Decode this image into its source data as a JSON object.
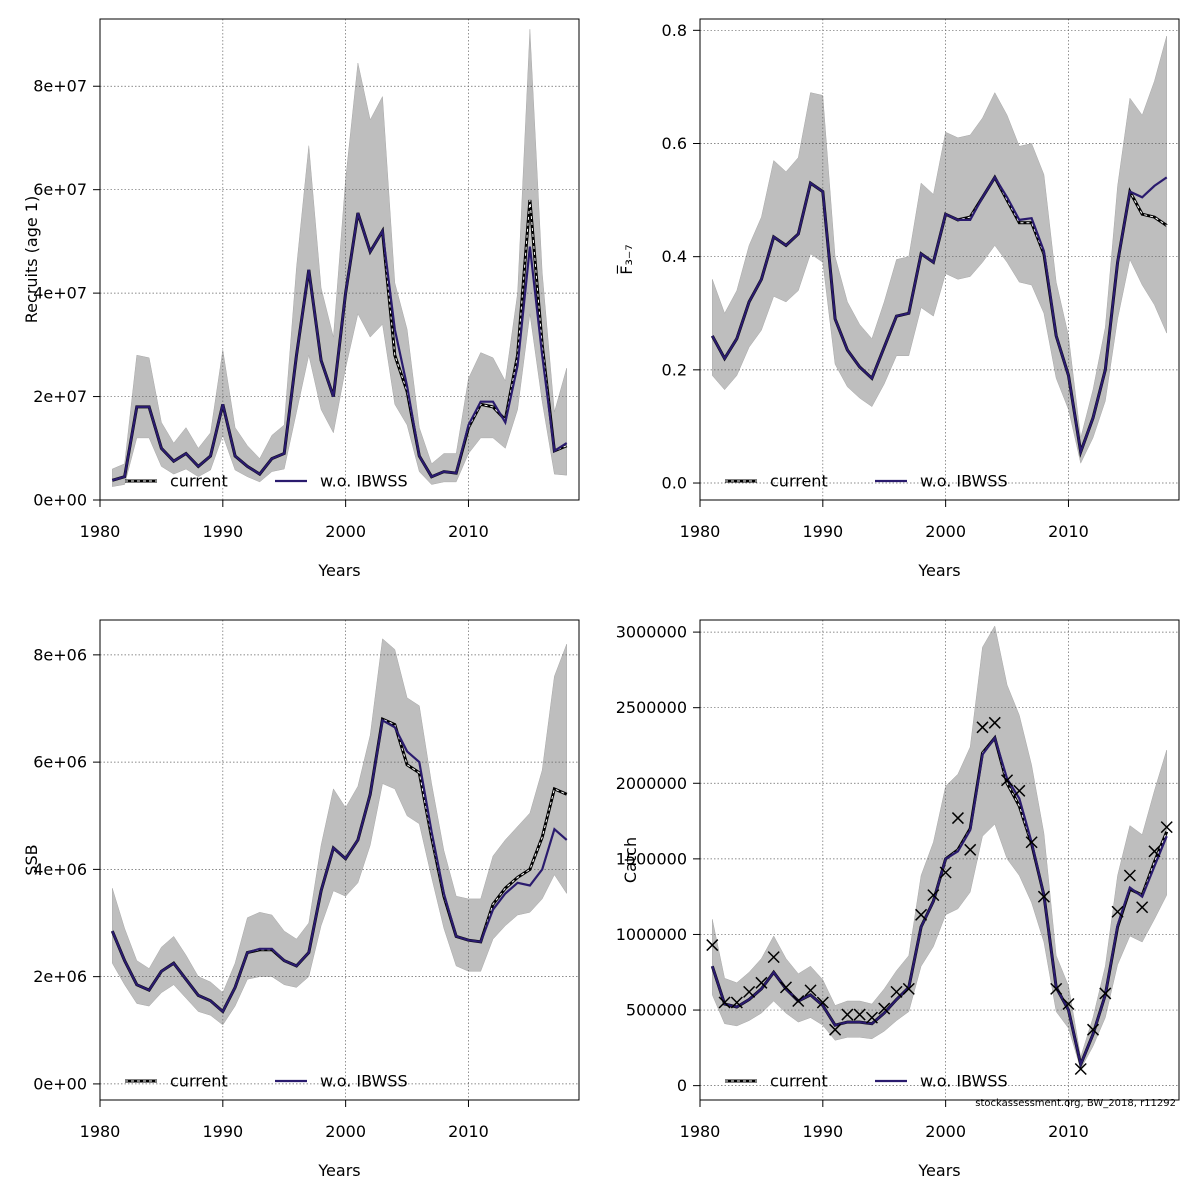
{
  "footer_text": "stockassessment.org, BW_2018, r11292",
  "legend": {
    "current": "current",
    "alt": "w.o. IBWSS"
  },
  "colors": {
    "band": "#bebebe",
    "current": "#000000",
    "alt": "#2a1b6e",
    "grid": "#666666"
  },
  "chart_data": [
    {
      "type": "line",
      "ylabel": "Recruits (age 1)",
      "xlabel": "Years",
      "x": [
        1981,
        1982,
        1983,
        1984,
        1985,
        1986,
        1987,
        1988,
        1989,
        1990,
        1991,
        1992,
        1993,
        1994,
        1995,
        1996,
        1997,
        1998,
        1999,
        2000,
        2001,
        2002,
        2003,
        2004,
        2005,
        2006,
        2007,
        2008,
        2009,
        2010,
        2011,
        2012,
        2013,
        2014,
        2015,
        2016,
        2017,
        2018
      ],
      "xlim": [
        1980,
        2019
      ],
      "ylim": [
        0,
        93000000
      ],
      "xticks": [
        1980,
        1990,
        2000,
        2010
      ],
      "xtick_labels": [
        "1980",
        "1990",
        "2000",
        "2010"
      ],
      "yticks": [
        0,
        20000000,
        40000000,
        60000000,
        80000000
      ],
      "ytick_labels": [
        "0e+00",
        "2e+07",
        "4e+07",
        "6e+07",
        "8e+07"
      ],
      "series": [
        {
          "name": "current",
          "values": [
            3800000,
            4500000,
            18000000,
            18000000,
            10000000,
            7500000,
            9000000,
            6500000,
            8500000,
            18500000,
            8500000,
            6500000,
            5000000,
            8000000,
            9000000,
            28000000,
            44500000,
            27000000,
            20000000,
            40000000,
            55500000,
            48000000,
            52000000,
            28000000,
            21000000,
            8500000,
            4500000,
            5500000,
            5200000,
            14000000,
            18500000,
            18000000,
            15500000,
            28000000,
            58000000,
            30000000,
            9500000,
            10500000
          ],
          "style": "dashed"
        },
        {
          "name": "w.o. IBWSS",
          "values": [
            3800000,
            4500000,
            18000000,
            18000000,
            10000000,
            7500000,
            9000000,
            6500000,
            8500000,
            18500000,
            8500000,
            6500000,
            5000000,
            8000000,
            9000000,
            28000000,
            44500000,
            27000000,
            20000000,
            40000000,
            55500000,
            48000000,
            52000000,
            33000000,
            22000000,
            8500000,
            4500000,
            5500000,
            5200000,
            14500000,
            19000000,
            19000000,
            15000000,
            26000000,
            49000000,
            28000000,
            9500000,
            11000000
          ],
          "style": "solid"
        }
      ],
      "band": {
        "lower": [
          2600000,
          3000000,
          12000000,
          12000000,
          6500000,
          5000000,
          6000000,
          4500000,
          5800000,
          12500000,
          5800000,
          4500000,
          3500000,
          5500000,
          6000000,
          17000000,
          28000000,
          17500000,
          13000000,
          25500000,
          36000000,
          31500000,
          34000000,
          18500000,
          14500000,
          5500000,
          3000000,
          3500000,
          3500000,
          9000000,
          12000000,
          12000000,
          10000000,
          17500000,
          36000000,
          19000000,
          5000000,
          4800000
        ],
        "upper": [
          6000000,
          7000000,
          28000000,
          27500000,
          15000000,
          11000000,
          14000000,
          10000000,
          13000000,
          29000000,
          14000000,
          10500000,
          8000000,
          12500000,
          14500000,
          45000000,
          68500000,
          41000000,
          31500000,
          62000000,
          84500000,
          73500000,
          78000000,
          42000000,
          33000000,
          14000000,
          7000000,
          9000000,
          9000000,
          23500000,
          28500000,
          27500000,
          23000000,
          40000000,
          91000000,
          44000000,
          17000000,
          25500000
        ]
      }
    },
    {
      "type": "line",
      "ylabel": "F̅₃₋₇",
      "xlabel": "Years",
      "x": [
        1981,
        1982,
        1983,
        1984,
        1985,
        1986,
        1987,
        1988,
        1989,
        1990,
        1991,
        1992,
        1993,
        1994,
        1995,
        1996,
        1997,
        1998,
        1999,
        2000,
        2001,
        2002,
        2003,
        2004,
        2005,
        2006,
        2007,
        2008,
        2009,
        2010,
        2011,
        2012,
        2013,
        2014,
        2015,
        2016,
        2017,
        2018
      ],
      "xlim": [
        1980,
        2019
      ],
      "ylim": [
        -0.03,
        0.82
      ],
      "xticks": [
        1980,
        1990,
        2000,
        2010
      ],
      "xtick_labels": [
        "1980",
        "1990",
        "2000",
        "2010"
      ],
      "yticks": [
        0,
        0.2,
        0.4,
        0.6,
        0.8
      ],
      "ytick_labels": [
        "0.0",
        "0.2",
        "0.4",
        "0.6",
        "0.8"
      ],
      "series": [
        {
          "name": "current",
          "values": [
            0.26,
            0.22,
            0.255,
            0.32,
            0.36,
            0.435,
            0.42,
            0.44,
            0.53,
            0.515,
            0.29,
            0.235,
            0.205,
            0.185,
            0.24,
            0.295,
            0.3,
            0.405,
            0.39,
            0.475,
            0.465,
            0.47,
            0.505,
            0.54,
            0.5,
            0.46,
            0.46,
            0.405,
            0.26,
            0.19,
            0.055,
            0.115,
            0.2,
            0.39,
            0.515,
            0.475,
            0.47,
            0.455
          ],
          "style": "dashed"
        },
        {
          "name": "w.o. IBWSS",
          "values": [
            0.26,
            0.22,
            0.255,
            0.32,
            0.36,
            0.435,
            0.42,
            0.44,
            0.53,
            0.515,
            0.29,
            0.235,
            0.205,
            0.185,
            0.24,
            0.295,
            0.3,
            0.405,
            0.39,
            0.475,
            0.465,
            0.465,
            0.505,
            0.54,
            0.505,
            0.465,
            0.468,
            0.41,
            0.26,
            0.19,
            0.055,
            0.115,
            0.2,
            0.39,
            0.515,
            0.505,
            0.525,
            0.54
          ],
          "style": "solid"
        }
      ],
      "band": {
        "lower": [
          0.19,
          0.165,
          0.19,
          0.24,
          0.27,
          0.33,
          0.32,
          0.34,
          0.405,
          0.39,
          0.21,
          0.17,
          0.15,
          0.135,
          0.175,
          0.225,
          0.225,
          0.31,
          0.295,
          0.37,
          0.36,
          0.365,
          0.39,
          0.42,
          0.39,
          0.355,
          0.35,
          0.3,
          0.185,
          0.13,
          0.035,
          0.08,
          0.145,
          0.29,
          0.395,
          0.35,
          0.315,
          0.265
        ],
        "upper": [
          0.36,
          0.3,
          0.34,
          0.42,
          0.47,
          0.57,
          0.55,
          0.575,
          0.69,
          0.685,
          0.4,
          0.32,
          0.28,
          0.255,
          0.32,
          0.395,
          0.4,
          0.53,
          0.51,
          0.62,
          0.61,
          0.615,
          0.645,
          0.69,
          0.65,
          0.595,
          0.6,
          0.545,
          0.355,
          0.26,
          0.08,
          0.165,
          0.275,
          0.525,
          0.68,
          0.65,
          0.71,
          0.79
        ]
      }
    },
    {
      "type": "line",
      "ylabel": "SSB",
      "xlabel": "Years",
      "x": [
        1981,
        1982,
        1983,
        1984,
        1985,
        1986,
        1987,
        1988,
        1989,
        1990,
        1991,
        1992,
        1993,
        1994,
        1995,
        1996,
        1997,
        1998,
        1999,
        2000,
        2001,
        2002,
        2003,
        2004,
        2005,
        2006,
        2007,
        2008,
        2009,
        2010,
        2011,
        2012,
        2013,
        2014,
        2015,
        2016,
        2017,
        2018
      ],
      "xlim": [
        1980,
        2019
      ],
      "ylim": [
        -300000,
        8650000
      ],
      "xticks": [
        1980,
        1990,
        2000,
        2010
      ],
      "xtick_labels": [
        "1980",
        "1990",
        "2000",
        "2010"
      ],
      "yticks": [
        0,
        2000000,
        4000000,
        6000000,
        8000000
      ],
      "ytick_labels": [
        "0e+00",
        "2e+06",
        "4e+06",
        "6e+06",
        "8e+06"
      ],
      "series": [
        {
          "name": "current",
          "values": [
            2850000,
            2300000,
            1850000,
            1750000,
            2100000,
            2250000,
            1950000,
            1650000,
            1550000,
            1350000,
            1800000,
            2450000,
            2500000,
            2500000,
            2300000,
            2200000,
            2450000,
            3600000,
            4400000,
            4200000,
            4550000,
            5400000,
            6800000,
            6700000,
            5950000,
            5800000,
            4600000,
            3500000,
            2750000,
            2680000,
            2650000,
            3350000,
            3650000,
            3850000,
            4000000,
            4600000,
            5500000,
            5400000
          ],
          "style": "dashed"
        },
        {
          "name": "w.o. IBWSS",
          "values": [
            2850000,
            2300000,
            1850000,
            1750000,
            2100000,
            2250000,
            1950000,
            1650000,
            1550000,
            1350000,
            1800000,
            2450000,
            2520000,
            2520000,
            2300000,
            2200000,
            2450000,
            3600000,
            4400000,
            4200000,
            4550000,
            5400000,
            6780000,
            6650000,
            6200000,
            6000000,
            4700000,
            3550000,
            2750000,
            2680000,
            2650000,
            3250000,
            3550000,
            3750000,
            3700000,
            4000000,
            4750000,
            4550000
          ],
          "style": "solid"
        }
      ],
      "band": {
        "lower": [
          2250000,
          1850000,
          1500000,
          1450000,
          1700000,
          1850000,
          1600000,
          1350000,
          1280000,
          1100000,
          1450000,
          1950000,
          2000000,
          2000000,
          1850000,
          1800000,
          2000000,
          2950000,
          3600000,
          3500000,
          3750000,
          4450000,
          5600000,
          5500000,
          5000000,
          4850000,
          3850000,
          2900000,
          2200000,
          2100000,
          2100000,
          2700000,
          2950000,
          3150000,
          3200000,
          3450000,
          3900000,
          3550000
        ],
        "upper": [
          3650000,
          2900000,
          2300000,
          2150000,
          2550000,
          2750000,
          2400000,
          2000000,
          1900000,
          1700000,
          2250000,
          3100000,
          3200000,
          3150000,
          2850000,
          2700000,
          3000000,
          4450000,
          5500000,
          5150000,
          5550000,
          6500000,
          8300000,
          8100000,
          7200000,
          7050000,
          5600000,
          4350000,
          3500000,
          3450000,
          3450000,
          4250000,
          4550000,
          4800000,
          5050000,
          5850000,
          7600000,
          8200000
        ]
      }
    },
    {
      "type": "line",
      "ylabel": "Catch",
      "xlabel": "Years",
      "x": [
        1981,
        1982,
        1983,
        1984,
        1985,
        1986,
        1987,
        1988,
        1989,
        1990,
        1991,
        1992,
        1993,
        1994,
        1995,
        1996,
        1997,
        1998,
        1999,
        2000,
        2001,
        2002,
        2003,
        2004,
        2005,
        2006,
        2007,
        2008,
        2009,
        2010,
        2011,
        2012,
        2013,
        2014,
        2015,
        2016,
        2017,
        2018
      ],
      "xlim": [
        1980,
        2019
      ],
      "ylim": [
        -95000,
        3080000
      ],
      "xticks": [
        1980,
        1990,
        2000,
        2010
      ],
      "xtick_labels": [
        "1980",
        "1990",
        "2000",
        "2010"
      ],
      "yticks": [
        0,
        500000,
        1000000,
        1500000,
        2000000,
        2500000,
        3000000
      ],
      "ytick_labels": [
        "0",
        "500000",
        "1000000",
        "1500000",
        "2000000",
        "2500000",
        "3000000"
      ],
      "series": [
        {
          "name": "current",
          "values": [
            790000,
            540000,
            520000,
            570000,
            640000,
            750000,
            640000,
            560000,
            600000,
            530000,
            400000,
            420000,
            420000,
            410000,
            480000,
            570000,
            650000,
            1050000,
            1220000,
            1500000,
            1560000,
            1700000,
            2200000,
            2300000,
            2000000,
            1850000,
            1600000,
            1260000,
            650000,
            500000,
            140000,
            340000,
            600000,
            1050000,
            1300000,
            1260000,
            1480000,
            1680000
          ],
          "style": "dashed"
        },
        {
          "name": "w.o. IBWSS",
          "values": [
            790000,
            540000,
            520000,
            570000,
            640000,
            750000,
            640000,
            560000,
            600000,
            530000,
            400000,
            420000,
            420000,
            410000,
            480000,
            570000,
            650000,
            1050000,
            1220000,
            1500000,
            1550000,
            1690000,
            2190000,
            2300000,
            2030000,
            1900000,
            1610000,
            1260000,
            650000,
            500000,
            140000,
            340000,
            600000,
            1060000,
            1310000,
            1250000,
            1450000,
            1650000
          ],
          "style": "solid"
        }
      ],
      "band": {
        "lower": [
          600000,
          410000,
          395000,
          430000,
          480000,
          560000,
          480000,
          420000,
          450000,
          400000,
          300000,
          320000,
          320000,
          310000,
          360000,
          430000,
          490000,
          790000,
          920000,
          1130000,
          1170000,
          1280000,
          1650000,
          1730000,
          1500000,
          1390000,
          1210000,
          950000,
          490000,
          380000,
          110000,
          260000,
          450000,
          800000,
          990000,
          950000,
          1100000,
          1260000
        ],
        "upper": [
          1100000,
          710000,
          680000,
          750000,
          840000,
          990000,
          840000,
          740000,
          790000,
          700000,
          530000,
          560000,
          560000,
          540000,
          640000,
          760000,
          860000,
          1390000,
          1610000,
          1980000,
          2060000,
          2240000,
          2900000,
          3040000,
          2650000,
          2450000,
          2120000,
          1670000,
          860000,
          660000,
          190000,
          450000,
          790000,
          1390000,
          1720000,
          1660000,
          1950000,
          2220000
        ]
      },
      "observed": {
        "name": "observed catch",
        "values": [
          930000,
          550000,
          550000,
          620000,
          680000,
          850000,
          650000,
          560000,
          630000,
          550000,
          370000,
          470000,
          470000,
          450000,
          510000,
          620000,
          640000,
          1130000,
          1260000,
          1410000,
          1770000,
          1560000,
          2370000,
          2400000,
          2020000,
          1950000,
          1610000,
          1250000,
          640000,
          540000,
          110000,
          370000,
          610000,
          1150000,
          1390000,
          1180000,
          1550000,
          1710000
        ]
      }
    }
  ]
}
